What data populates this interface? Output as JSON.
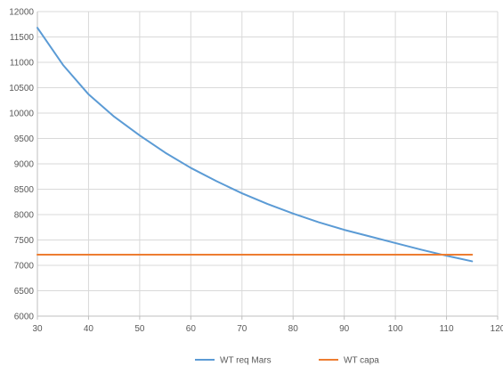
{
  "chart_data": {
    "type": "line",
    "title": "",
    "xlabel": "",
    "ylabel": "",
    "xlim": [
      30,
      120
    ],
    "ylim": [
      6000,
      12000
    ],
    "x_ticks": [
      30,
      40,
      50,
      60,
      70,
      80,
      90,
      100,
      110,
      120
    ],
    "y_ticks": [
      6000,
      6500,
      7000,
      7500,
      8000,
      8500,
      9000,
      9500,
      10000,
      10500,
      11000,
      11500,
      12000
    ],
    "grid": true,
    "legend_position": "bottom",
    "series": [
      {
        "name": "WT req Mars",
        "color": "#5b9bd5",
        "x": [
          30,
          35,
          40,
          45,
          50,
          55,
          60,
          65,
          70,
          75,
          80,
          85,
          90,
          95,
          100,
          105,
          110,
          115
        ],
        "y": [
          11680,
          10950,
          10370,
          9930,
          9560,
          9220,
          8920,
          8660,
          8420,
          8210,
          8020,
          7850,
          7700,
          7570,
          7440,
          7310,
          7190,
          7080
        ]
      },
      {
        "name": "WT capa",
        "color": "#ed7d31",
        "x": [
          30,
          115
        ],
        "y": [
          7210,
          7210
        ]
      }
    ]
  }
}
